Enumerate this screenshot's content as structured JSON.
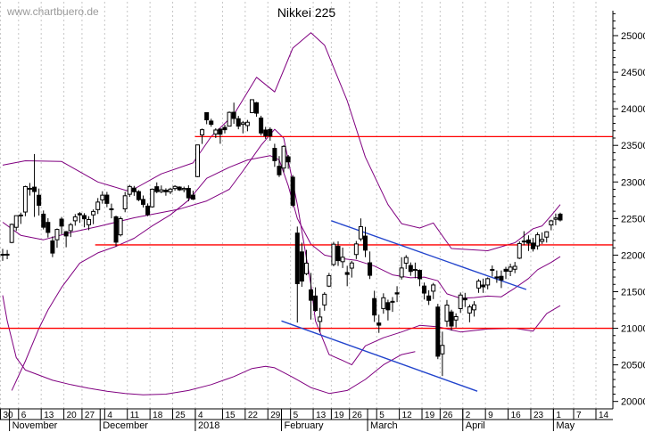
{
  "watermark": "www.chartbuero.de",
  "title": "Nikkei 225",
  "colors": {
    "band": "#800080",
    "support_resistance": "#ff0000",
    "trendline": "#2244cc",
    "grid": "#c6c6c6",
    "axis": "#000000",
    "candle_up_fill": "#ffffff",
    "candle_down_fill": "#000000",
    "candle_outline": "#000000"
  },
  "y_axis": {
    "min": 20000,
    "max": 25000,
    "major_step": 500,
    "minor_step": 100,
    "labels": [
      "25000",
      "24500",
      "24000",
      "23500",
      "23000",
      "22500",
      "22000",
      "21500",
      "21000",
      "20500",
      "20000"
    ]
  },
  "x_axis": {
    "months": [
      [
        "November",
        2
      ],
      [
        "December",
        22
      ],
      [
        "2018",
        43
      ],
      [
        "February",
        62
      ],
      [
        "March",
        81
      ],
      [
        "April",
        102
      ],
      [
        "May",
        122
      ]
    ],
    "week_labels": [
      [
        0,
        "30"
      ],
      [
        4,
        "6"
      ],
      [
        9,
        "13"
      ],
      [
        14,
        "20"
      ],
      [
        18,
        "27"
      ],
      [
        23,
        "4"
      ],
      [
        28,
        "11"
      ],
      [
        33,
        "18"
      ],
      [
        38,
        "25"
      ],
      [
        43,
        "4"
      ],
      [
        49,
        "15"
      ],
      [
        54,
        "22"
      ],
      [
        59,
        "29"
      ],
      [
        64,
        "5"
      ],
      [
        69,
        "13"
      ],
      [
        73,
        "19"
      ],
      [
        77,
        "26"
      ],
      [
        83,
        "5"
      ],
      [
        88,
        "12"
      ],
      [
        93,
        "19"
      ],
      [
        97,
        "26"
      ],
      [
        102,
        "2"
      ],
      [
        107,
        "9"
      ],
      [
        112,
        "16"
      ],
      [
        117,
        "23"
      ],
      [
        122,
        "1"
      ]
    ],
    "future_week_labels": [
      "7",
      "14"
    ]
  },
  "chart_data": {
    "type": "candlestick",
    "title": "Nikkei 225",
    "ylim": [
      19900,
      25480
    ],
    "grid": "vertical-weekly-dashed",
    "legend": "none",
    "candles_ohlc": [
      [
        22000,
        22086,
        21921,
        22011
      ],
      [
        22009,
        22070,
        21944,
        22012
      ],
      [
        22173,
        22432,
        22162,
        22420
      ],
      [
        22380,
        22540,
        22331,
        22539
      ],
      [
        22543,
        22581,
        22426,
        22548
      ],
      [
        22589,
        22949,
        22532,
        22937
      ],
      [
        22901,
        22986,
        22814,
        22913
      ],
      [
        22929,
        23382,
        22522,
        22869
      ],
      [
        22818,
        22910,
        22541,
        22681
      ],
      [
        22560,
        22610,
        22351,
        22381
      ],
      [
        22447,
        22505,
        22240,
        22310
      ],
      [
        22194,
        22255,
        21972,
        22028
      ],
      [
        22210,
        22364,
        22100,
        22351
      ],
      [
        22492,
        22522,
        22286,
        22397
      ],
      [
        22320,
        22330,
        22107,
        22262
      ],
      [
        22334,
        22440,
        22247,
        22416
      ],
      [
        22469,
        22561,
        22402,
        22523
      ],
      [
        22567,
        22588,
        22441,
        22550
      ],
      [
        22541,
        22573,
        22380,
        22496
      ],
      [
        22415,
        22532,
        22341,
        22486
      ],
      [
        22550,
        22625,
        22423,
        22597
      ],
      [
        22622,
        22780,
        22562,
        22725
      ],
      [
        22755,
        22873,
        22703,
        22819
      ],
      [
        22820,
        22864,
        22655,
        22707
      ],
      [
        22633,
        22704,
        22503,
        22622
      ],
      [
        22524,
        22539,
        22119,
        22177
      ],
      [
        22277,
        22529,
        22255,
        22498
      ],
      [
        22632,
        22864,
        22586,
        22811
      ],
      [
        22831,
        22960,
        22795,
        22938
      ],
      [
        22916,
        22946,
        22810,
        22866
      ],
      [
        22868,
        22887,
        22738,
        22758
      ],
      [
        22761,
        22815,
        22651,
        22694
      ],
      [
        22670,
        22707,
        22532,
        22553
      ],
      [
        22660,
        22911,
        22649,
        22901
      ],
      [
        22935,
        22994,
        22846,
        22868
      ],
      [
        22867,
        22952,
        22847,
        22892
      ],
      [
        22887,
        22913,
        22812,
        22866
      ],
      [
        22866,
        22920,
        22834,
        22902
      ],
      [
        22910,
        22955,
        22880,
        22939
      ],
      [
        22930,
        22940,
        22877,
        22892
      ],
      [
        22895,
        22936,
        22858,
        22911
      ],
      [
        22912,
        22954,
        22736,
        22783
      ],
      [
        22820,
        22881,
        22753,
        22765
      ],
      [
        23073,
        23506,
        23065,
        23506
      ],
      [
        23643,
        23730,
        23520,
        23714
      ],
      [
        23948,
        23952,
        23789,
        23849
      ],
      [
        23832,
        23864,
        23755,
        23788
      ],
      [
        23656,
        23734,
        23601,
        23710
      ],
      [
        23723,
        23730,
        23522,
        23653
      ],
      [
        23745,
        23782,
        23664,
        23714
      ],
      [
        23763,
        23963,
        23763,
        23951
      ],
      [
        23952,
        24084,
        23795,
        23868
      ],
      [
        23864,
        23903,
        23720,
        23763
      ],
      [
        23787,
        23834,
        23664,
        23808
      ],
      [
        23771,
        23848,
        23693,
        23816
      ],
      [
        23948,
        24129,
        23940,
        24124
      ],
      [
        24083,
        24094,
        23891,
        23940
      ],
      [
        23874,
        23905,
        23637,
        23669
      ],
      [
        23710,
        23753,
        23589,
        23632
      ],
      [
        23718,
        23747,
        23564,
        23629
      ],
      [
        23459,
        23522,
        23206,
        23291
      ],
      [
        23214,
        23354,
        23067,
        23098
      ],
      [
        23190,
        23504,
        23130,
        23486
      ],
      [
        23344,
        23369,
        23180,
        23274
      ],
      [
        23065,
        23094,
        22657,
        22682
      ],
      [
        22301,
        22390,
        21078,
        21610
      ],
      [
        22044,
        22170,
        21567,
        21645
      ],
      [
        21746,
        22071,
        21725,
        21890
      ],
      [
        21525,
        21757,
        21119,
        21383
      ],
      [
        21441,
        21560,
        21224,
        21244
      ],
      [
        21093,
        21278,
        20950,
        21154
      ],
      [
        21319,
        21493,
        21240,
        21465
      ],
      [
        21576,
        21757,
        21563,
        21720
      ],
      [
        21872,
        22181,
        21847,
        22149
      ],
      [
        22120,
        22188,
        21852,
        21925
      ],
      [
        21910,
        22103,
        21824,
        21971
      ],
      [
        21762,
        21854,
        21575,
        21736
      ],
      [
        21822,
        21921,
        21693,
        21893
      ],
      [
        22008,
        22193,
        21946,
        22153
      ],
      [
        22222,
        22502,
        22192,
        22389
      ],
      [
        22260,
        22386,
        21972,
        22068
      ],
      [
        21895,
        22050,
        21673,
        21724
      ],
      [
        21406,
        21513,
        21087,
        21181
      ],
      [
        21072,
        21186,
        20937,
        21042
      ],
      [
        21270,
        21478,
        21199,
        21417
      ],
      [
        21350,
        21391,
        21107,
        21252
      ],
      [
        21360,
        21427,
        21224,
        21368
      ],
      [
        21485,
        21575,
        21358,
        21469
      ],
      [
        21701,
        21971,
        21666,
        21824
      ],
      [
        21890,
        22000,
        21810,
        21968
      ],
      [
        21858,
        21900,
        21717,
        21777
      ],
      [
        21791,
        21898,
        21684,
        21804
      ],
      [
        21791,
        21804,
        21575,
        21677
      ],
      [
        21577,
        21625,
        21393,
        21481
      ],
      [
        21442,
        21520,
        21318,
        21381
      ],
      [
        21507,
        21620,
        21399,
        21592
      ],
      [
        21290,
        21334,
        20578,
        20618
      ],
      [
        20650,
        20954,
        20347,
        20766
      ],
      [
        21097,
        21387,
        21021,
        21317
      ],
      [
        21223,
        21254,
        20968,
        21031
      ],
      [
        21113,
        21204,
        21010,
        21159
      ],
      [
        21269,
        21489,
        21210,
        21454
      ],
      [
        21411,
        21484,
        21290,
        21389
      ],
      [
        21209,
        21325,
        21082,
        21292
      ],
      [
        21252,
        21371,
        21160,
        21320
      ],
      [
        21550,
        21672,
        21484,
        21645
      ],
      [
        21591,
        21679,
        21484,
        21567
      ],
      [
        21592,
        21695,
        21532,
        21678
      ],
      [
        21804,
        21858,
        21707,
        21794
      ],
      [
        21702,
        21790,
        21621,
        21687
      ],
      [
        21710,
        21790,
        21550,
        21660
      ],
      [
        21806,
        21840,
        21673,
        21779
      ],
      [
        21781,
        21882,
        21713,
        21836
      ],
      [
        21807,
        21907,
        21753,
        21847
      ],
      [
        21958,
        22188,
        21946,
        22158
      ],
      [
        22192,
        22327,
        22133,
        22191
      ],
      [
        22207,
        22270,
        22056,
        22162
      ],
      [
        22165,
        22235,
        22049,
        22088
      ],
      [
        22126,
        22312,
        22075,
        22278
      ],
      [
        22188,
        22310,
        22152,
        22215
      ],
      [
        22246,
        22327,
        22171,
        22319
      ],
      [
        22413,
        22483,
        22339,
        22468
      ],
      [
        22490,
        22568,
        22409,
        22508
      ],
      [
        22560,
        22580,
        22460,
        22480
      ]
    ],
    "bands": {
      "upper": [
        [
          0,
          23230
        ],
        [
          5,
          23290
        ],
        [
          13,
          23280
        ],
        [
          21,
          23000
        ],
        [
          28,
          22870
        ],
        [
          35,
          23110
        ],
        [
          42,
          23260
        ],
        [
          46,
          23620
        ],
        [
          51,
          23920
        ],
        [
          56,
          24430
        ],
        [
          60,
          24230
        ],
        [
          64,
          24830
        ],
        [
          68,
          25040
        ],
        [
          71,
          24870
        ],
        [
          76,
          24110
        ],
        [
          80,
          23340
        ],
        [
          85,
          22690
        ],
        [
          88,
          22430
        ],
        [
          92,
          22370
        ],
        [
          95,
          22440
        ],
        [
          99,
          22090
        ],
        [
          107,
          22060
        ],
        [
          113,
          22170
        ],
        [
          117,
          22360
        ],
        [
          119,
          22400
        ],
        [
          121,
          22540
        ],
        [
          123,
          22690
        ]
      ],
      "mid_upper": [
        [
          2,
          20150
        ],
        [
          5,
          20550
        ],
        [
          8,
          21000
        ],
        [
          10,
          21250
        ],
        [
          13,
          21560
        ],
        [
          17,
          21890
        ],
        [
          21,
          22030
        ],
        [
          25,
          22120
        ],
        [
          29,
          22230
        ],
        [
          33,
          22400
        ],
        [
          37,
          22550
        ],
        [
          41,
          22750
        ],
        [
          45,
          23050
        ],
        [
          50,
          23200
        ],
        [
          54,
          23300
        ],
        [
          59,
          23360
        ],
        [
          61,
          23300
        ],
        [
          63,
          22950
        ],
        [
          65,
          22500
        ],
        [
          68,
          22150
        ],
        [
          71,
          22000
        ],
        [
          74,
          21960
        ],
        [
          78,
          21930
        ],
        [
          82,
          21850
        ],
        [
          86,
          21730
        ],
        [
          90,
          21690
        ],
        [
          93,
          21700
        ],
        [
          96,
          21650
        ],
        [
          98,
          21470
        ],
        [
          101,
          21410
        ],
        [
          104,
          21420
        ],
        [
          107,
          21440
        ],
        [
          110,
          21430
        ],
        [
          113,
          21550
        ],
        [
          116,
          21680
        ],
        [
          118,
          21800
        ],
        [
          121,
          21900
        ],
        [
          123,
          21980
        ]
      ],
      "mid_lower": [
        [
          0,
          22450
        ],
        [
          4,
          22270
        ],
        [
          9,
          22210
        ],
        [
          15,
          22310
        ],
        [
          21,
          22390
        ],
        [
          29,
          22510
        ],
        [
          39,
          22630
        ],
        [
          45,
          22740
        ],
        [
          50,
          22900
        ],
        [
          53,
          23150
        ],
        [
          57,
          23500
        ],
        [
          60,
          23720
        ],
        [
          62,
          23600
        ],
        [
          65,
          22690
        ],
        [
          68,
          21600
        ],
        [
          69,
          21100
        ],
        [
          72,
          20640
        ],
        [
          75,
          20560
        ],
        [
          77,
          20500
        ],
        [
          80,
          20760
        ],
        [
          84,
          20870
        ],
        [
          88,
          20950
        ],
        [
          92,
          21040
        ],
        [
          96,
          21020
        ],
        [
          101,
          20950
        ],
        [
          107,
          20990
        ],
        [
          113,
          21000
        ],
        [
          117,
          20960
        ],
        [
          120,
          21200
        ],
        [
          123,
          21310
        ]
      ],
      "lower": [
        [
          0,
          21450
        ],
        [
          1,
          21100
        ],
        [
          3,
          20600
        ],
        [
          5,
          20430
        ],
        [
          8,
          20360
        ],
        [
          11,
          20290
        ],
        [
          15,
          20230
        ],
        [
          19,
          20180
        ],
        [
          23,
          20140
        ],
        [
          27,
          20110
        ],
        [
          31,
          20090
        ],
        [
          36,
          20100
        ],
        [
          41,
          20150
        ],
        [
          46,
          20230
        ],
        [
          51,
          20340
        ],
        [
          55,
          20450
        ],
        [
          58,
          20480
        ],
        [
          60,
          20460
        ],
        [
          64,
          20330
        ],
        [
          68,
          20190
        ],
        [
          72,
          20110
        ],
        [
          76,
          20150
        ],
        [
          80,
          20300
        ],
        [
          84,
          20500
        ],
        [
          88,
          20640
        ],
        [
          91,
          20680
        ]
      ]
    },
    "horizontal_lines": [
      {
        "value": 23620,
        "from_index": 43
      },
      {
        "value": 22140,
        "from_index": 21
      },
      {
        "value": 21000,
        "from_index": 0
      }
    ],
    "trendlines": [
      {
        "from": [
          72.5,
          22470
        ],
        "to": [
          115.5,
          21530
        ]
      },
      {
        "from": [
          61.5,
          21100
        ],
        "to": [
          104.7,
          20140
        ]
      }
    ]
  }
}
